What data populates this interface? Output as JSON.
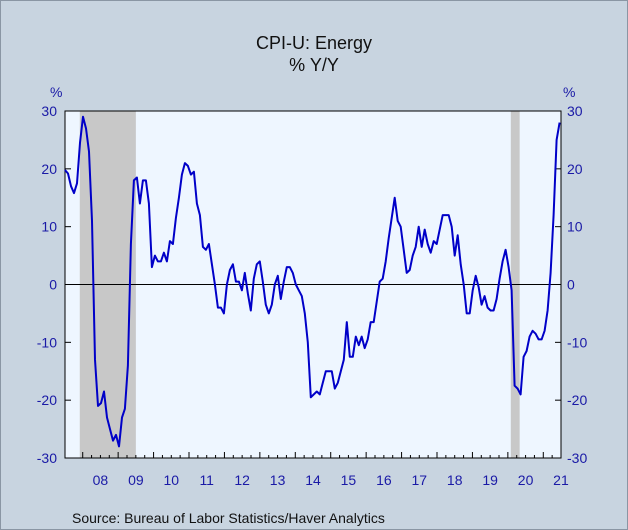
{
  "chart_data": {
    "type": "line",
    "title": "CPI-U: Energy",
    "subtitle": "% Y/Y",
    "ylabel_left": "%",
    "ylabel_right": "%",
    "ylim": [
      -30,
      30
    ],
    "yticks": [
      30,
      20,
      10,
      0,
      -10,
      -20,
      -30
    ],
    "xlim": [
      2007.5,
      2021.5
    ],
    "xtick_labels": [
      "08",
      "09",
      "10",
      "11",
      "12",
      "13",
      "14",
      "15",
      "16",
      "17",
      "18",
      "19",
      "20",
      "21"
    ],
    "recessions": [
      [
        2007.917,
        2009.5
      ],
      [
        2020.083,
        2020.333
      ]
    ],
    "recession_color": "#c8c8c8",
    "plot_bg": "#eef6ff",
    "line_color": "#0000c8",
    "zero_line": true,
    "grid": false,
    "source": "Source:  Bureau of Labor Statistics/Haver Analytics",
    "series": [
      {
        "values": [
          19.8,
          19.2,
          17.0,
          15.8,
          17.5,
          24.5,
          29.0,
          27.0,
          23.0,
          11.0,
          -13.0,
          -21.0,
          -20.5,
          -18.5,
          -23.0,
          -25.0,
          -27.0,
          -26.0,
          -28.0,
          -23.0,
          -21.5,
          -14.0,
          7.0,
          18.0,
          18.5,
          14.0,
          18.0,
          18.0,
          14.0,
          3.0,
          5.0,
          4.0,
          4.0,
          5.5,
          4.0,
          7.5,
          7.0,
          11.5,
          15.0,
          19.0,
          21.0,
          20.5,
          19.0,
          19.5,
          14.0,
          12.0,
          6.5,
          6.0,
          7.0,
          3.5,
          0.0,
          -4.0,
          -4.0,
          -5.0,
          0.0,
          2.5,
          3.5,
          0.5,
          0.5,
          -1.0,
          2.0,
          -1.5,
          -4.5,
          1.0,
          3.5,
          4.0,
          0.5,
          -3.5,
          -5.0,
          -3.5,
          0.0,
          1.5,
          -2.5,
          0.5,
          3.0,
          3.0,
          2.0,
          0.0,
          -1.0,
          -2.0,
          -5.0,
          -10.0,
          -19.5,
          -19.0,
          -18.5,
          -19.0,
          -17.0,
          -15.0,
          -15.0,
          -15.0,
          -18.0,
          -17.0,
          -15.0,
          -13.0,
          -6.5,
          -12.5,
          -12.5,
          -9.0,
          -10.5,
          -9.0,
          -11.0,
          -9.5,
          -6.5,
          -6.5,
          -3.0,
          0.5,
          1.0,
          4.0,
          8.0,
          11.5,
          15.0,
          11.0,
          10.0,
          6.0,
          2.0,
          2.5,
          5.0,
          6.5,
          10.0,
          6.5,
          9.5,
          7.0,
          5.5,
          7.5,
          7.0,
          9.5,
          12.0,
          12.0,
          12.0,
          10.0,
          5.0,
          8.5,
          3.5,
          0.0,
          -5.0,
          -5.0,
          -1.0,
          1.5,
          -0.5,
          -3.5,
          -2.0,
          -4.0,
          -4.5,
          -4.5,
          -2.5,
          1.0,
          4.0,
          6.0,
          3.0,
          -1.0,
          -17.5,
          -18.0,
          -19.0,
          -12.5,
          -11.5,
          -9.0,
          -8.0,
          -8.5,
          -9.5,
          -9.5,
          -8.0,
          -4.5,
          2.0,
          12.0,
          25.0,
          28.0
        ]
      }
    ]
  }
}
